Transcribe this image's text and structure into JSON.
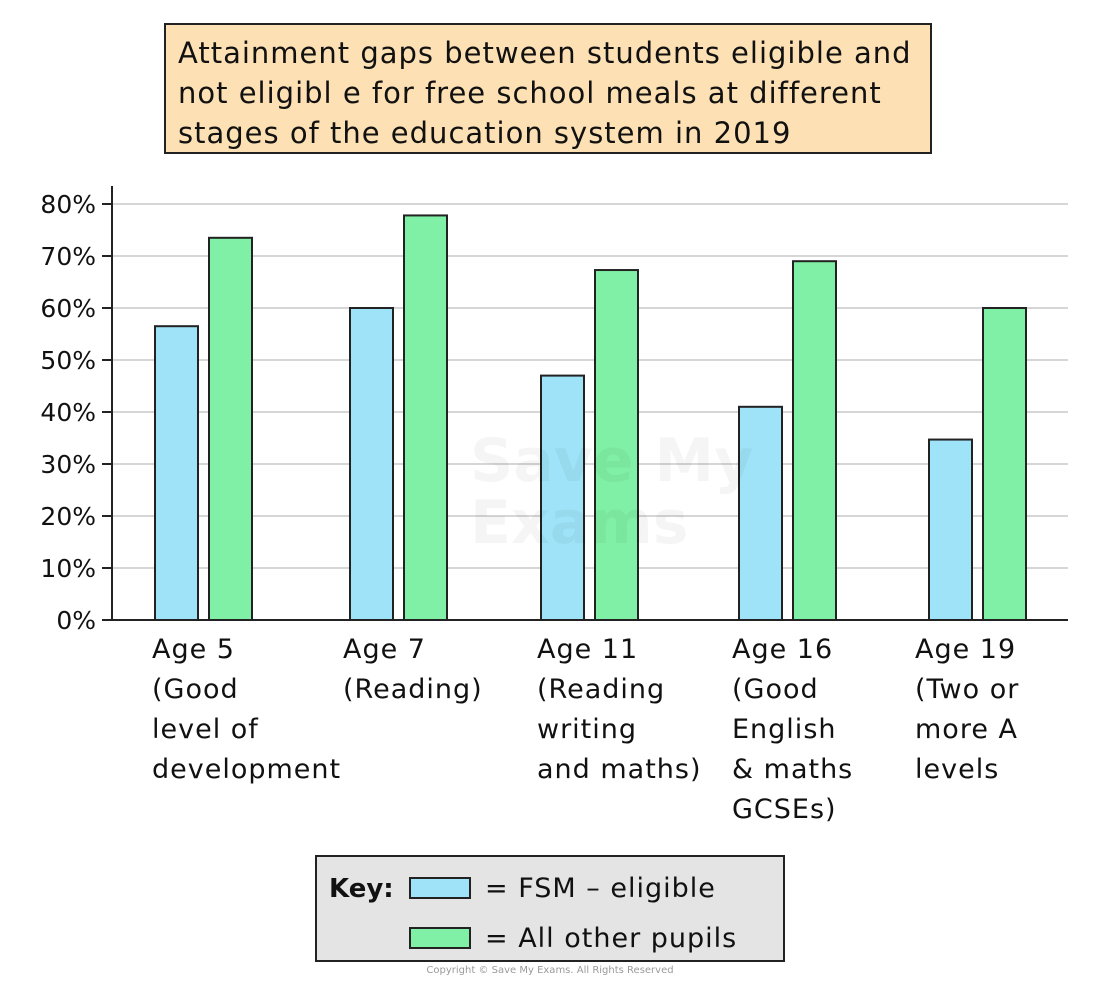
{
  "title_lines": [
    "Attainment gaps between students eligible and",
    "not eligibl e for free school meals at different",
    "stages of the education system in 2019"
  ],
  "chart_data": {
    "type": "bar",
    "title": "Attainment gaps between students eligible and not eligibl e for free school meals at different stages of the education system in 2019",
    "categories": [
      "Age 5 (Good level of development",
      "Age 7 (Reading)",
      "Age 11 (Reading writing and maths)",
      "Age 16 (Good English & maths GCSEs)",
      "Age 19 (Two or more A levels"
    ],
    "category_lines": [
      [
        "Age 5",
        "(Good",
        "level of",
        "development"
      ],
      [
        "Age 7",
        "(Reading)"
      ],
      [
        "Age 11",
        "(Reading",
        "writing",
        "and maths)"
      ],
      [
        "Age 16",
        "(Good",
        "English",
        "& maths",
        "GCSEs)"
      ],
      [
        "Age 19",
        "(Two or",
        "more A",
        "levels"
      ]
    ],
    "series": [
      {
        "name": "FSM – eligible",
        "values": [
          56.5,
          60,
          47,
          41,
          34.7
        ],
        "color": "#9ee3f7"
      },
      {
        "name": "All other pupils",
        "values": [
          73.5,
          77.8,
          67.3,
          69,
          60
        ],
        "color": "#7ff0a5"
      }
    ],
    "ylim": [
      0,
      80
    ],
    "yticks": [
      "0%",
      "10%",
      "20%",
      "30%",
      "40%",
      "50%",
      "60%",
      "70%",
      "80%"
    ],
    "grid": true,
    "legend": "bottom"
  },
  "legend": {
    "key_label": "Key:",
    "items": [
      "= FSM – eligible",
      "= All other pupils"
    ]
  },
  "watermark": [
    "Save My",
    "Exams"
  ],
  "copyright": "Copyright © Save My Exams. All Rights Reserved"
}
